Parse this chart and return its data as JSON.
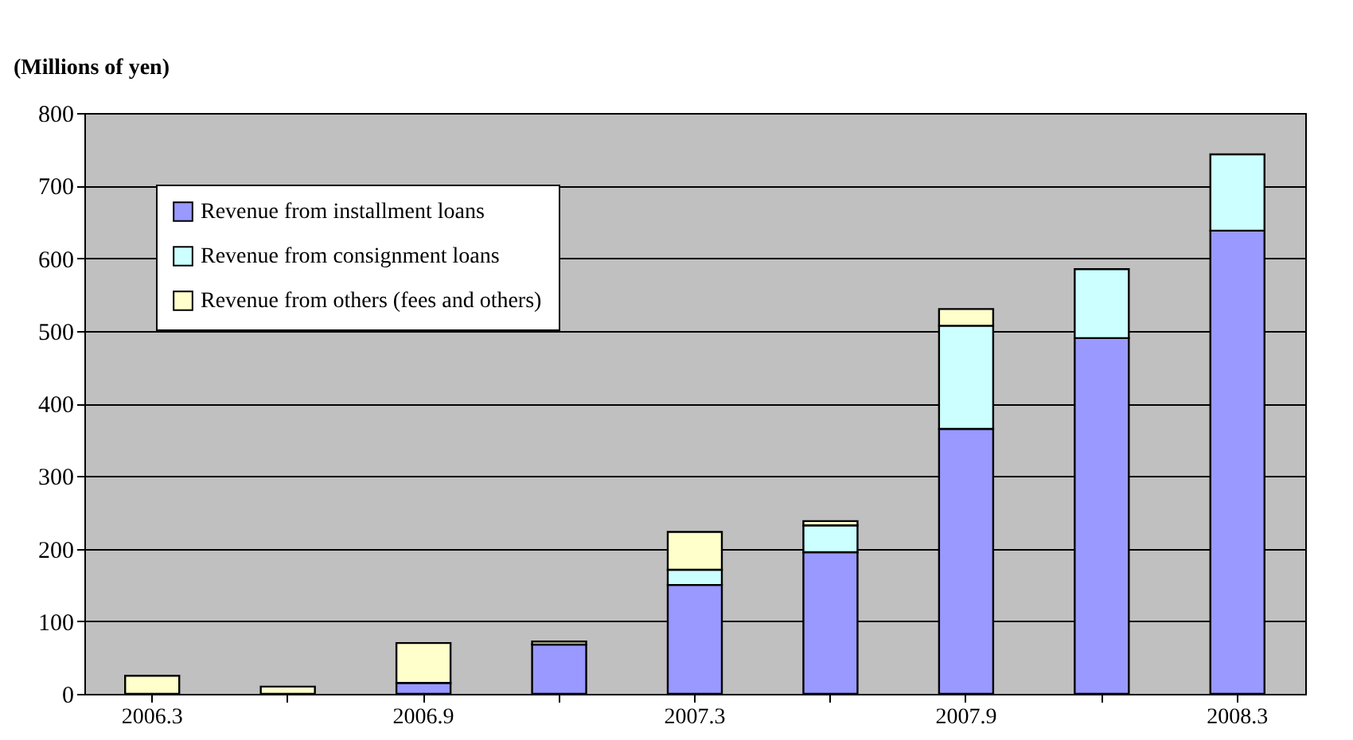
{
  "chart_data": {
    "type": "bar",
    "stacked": true,
    "ylabel": "(Millions of yen)",
    "categories": [
      "2006.3",
      null,
      "2006.9",
      null,
      "2007.3",
      null,
      "2007.9",
      null,
      "2008.3"
    ],
    "series": [
      {
        "name": "Revenue from installment loans",
        "color": "#9999ff",
        "values": [
          null,
          null,
          15,
          68,
          150,
          195,
          365,
          490,
          638
        ]
      },
      {
        "name": "Revenue from consignment loans",
        "color": "#ccffff",
        "values": [
          null,
          null,
          null,
          null,
          21,
          37,
          142,
          95,
          105
        ]
      },
      {
        "name": "Revenue from others (fees and others)",
        "color": "#ffffcc",
        "values": [
          25,
          10,
          55,
          4,
          52,
          6,
          23,
          null,
          null
        ]
      }
    ],
    "ylim": [
      0,
      800
    ],
    "yticks": [
      0,
      100,
      200,
      300,
      400,
      500,
      600,
      700,
      800
    ],
    "grid": "y",
    "legend": "top left"
  }
}
